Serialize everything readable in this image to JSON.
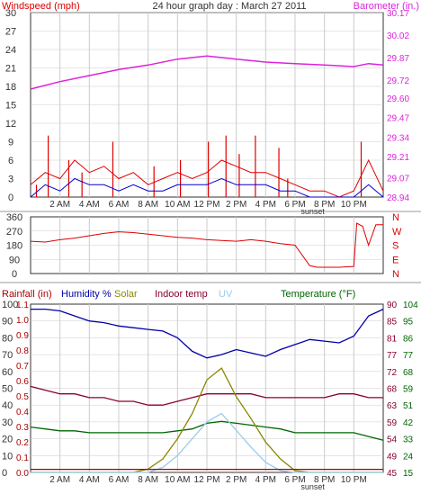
{
  "header": {
    "wind_label": "Windspeed (mph)",
    "title": "24 hour graph day : March 27 2011",
    "baro_label": "Barometer (in.)"
  },
  "colors": {
    "wind": "#dd0000",
    "gust_bars": "#dd0000",
    "avg_wind": "#0000cc",
    "barometer": "#dd22dd",
    "humidity": "#0000aa",
    "indoor": "#880033",
    "temperature": "#006600",
    "solar": "#888800",
    "uv": "#99ccee",
    "rain": "#aa0000",
    "grid": "#cccccc",
    "axis_text": "#333333"
  },
  "time_axis": {
    "labels": [
      "2 AM",
      "4 AM",
      "6 AM",
      "8 AM",
      "10 AM",
      "12 PM",
      "2 PM",
      "4 PM",
      "6 PM",
      "8 PM",
      "10 PM"
    ],
    "label_hours": [
      2,
      4,
      6,
      8,
      10,
      12,
      14,
      16,
      18,
      20,
      22
    ],
    "sunset_label": "sunset"
  },
  "wind_panel": {
    "left_ticks": [
      "30",
      "27",
      "24",
      "21",
      "18",
      "15",
      "12",
      "9",
      "6",
      "3",
      "0"
    ],
    "right_ticks": [
      "30.17",
      "30.02",
      "29.87",
      "29.72",
      "29.60",
      "29.47",
      "29.34",
      "29.21",
      "29.07",
      "28.94"
    ]
  },
  "dir_panel": {
    "left_ticks": [
      "360",
      "270",
      "180",
      "90",
      "0"
    ],
    "right_ticks": [
      "N",
      "W",
      "S",
      "E",
      "N"
    ]
  },
  "bottom_panel": {
    "rain_label": "Rainfall (in)",
    "humidity_label": "Humidity %",
    "solar_label": "Solar",
    "indoor_label": "Indoor temp",
    "uv_label": "UV",
    "temp_label": "Temperature (°F)",
    "left1_ticks": [
      "100",
      "90",
      "80",
      "70",
      "60",
      "50",
      "40",
      "30",
      "20",
      "10",
      "0"
    ],
    "left2_ticks": [
      "1.1",
      "1.0",
      "0.9",
      "0.8",
      "0.7",
      "0.6",
      "0.5",
      "0.4",
      "0.3",
      "0.2",
      "0.1",
      "0.0"
    ],
    "right1_ticks": [
      "90",
      "85",
      "81",
      "77",
      "72",
      "68",
      "63",
      "59",
      "54",
      "49",
      "45"
    ],
    "right2_ticks": [
      "104",
      "95",
      "86",
      "77",
      "68",
      "59",
      "51",
      "42",
      "33",
      "24",
      "15"
    ]
  },
  "chart_data": [
    {
      "type": "line",
      "title": "24 hour graph day : March 27 2011",
      "ylabel": "Windspeed (mph)",
      "ylabel_right": "Barometer (in.)",
      "ylim": [
        0,
        30
      ],
      "ylim_right": [
        28.94,
        30.17
      ],
      "x_hours": [
        0,
        1,
        2,
        3,
        4,
        5,
        6,
        7,
        8,
        9,
        10,
        11,
        12,
        13,
        14,
        15,
        16,
        17,
        18,
        19,
        20,
        21,
        22,
        23,
        24
      ],
      "series": [
        {
          "name": "Barometer (in.)",
          "axis": "right",
          "hours": [
            0,
            2,
            4,
            6,
            8,
            10,
            12,
            14,
            16,
            18,
            20,
            22,
            23,
            24
          ],
          "values": [
            29.66,
            29.71,
            29.75,
            29.79,
            29.82,
            29.86,
            29.88,
            29.86,
            29.84,
            29.83,
            29.82,
            29.81,
            29.83,
            29.82
          ]
        },
        {
          "axis": "left",
          "values": [
            2,
            4,
            3,
            6,
            4,
            5,
            3,
            4,
            2,
            3,
            4,
            3,
            4,
            6,
            5,
            4,
            4,
            3,
            2,
            1,
            1,
            0,
            1,
            6,
            1
          ]
        },
        {
          "axis": "left",
          "values": [
            0,
            2,
            1,
            3,
            2,
            2,
            1,
            2,
            1,
            1,
            2,
            2,
            2,
            3,
            2,
            2,
            2,
            1,
            1,
            0,
            0,
            0,
            0,
            2,
            0
          ]
        }
      ],
      "gust_bars": [
        {
          "hour": 0.4,
          "value": 2
        },
        {
          "hour": 1.2,
          "value": 10
        },
        {
          "hour": 2.6,
          "value": 6
        },
        {
          "hour": 3.5,
          "value": 4
        },
        {
          "hour": 5.6,
          "value": 9
        },
        {
          "hour": 8.4,
          "value": 5
        },
        {
          "hour": 10.2,
          "value": 6
        },
        {
          "hour": 12.1,
          "value": 9
        },
        {
          "hour": 13.3,
          "value": 10
        },
        {
          "hour": 14.2,
          "value": 7
        },
        {
          "hour": 15.3,
          "value": 10
        },
        {
          "hour": 16.9,
          "value": 8
        },
        {
          "hour": 17.5,
          "value": 3
        },
        {
          "hour": 22.5,
          "value": 9
        }
      ]
    },
    {
      "type": "line",
      "ylim": [
        0,
        360
      ],
      "hours": [
        0,
        1,
        2,
        3,
        4,
        5,
        6,
        7,
        8,
        9,
        10,
        11,
        12,
        13,
        14,
        15,
        16,
        17,
        18,
        19,
        19.5,
        20,
        21,
        22,
        22.2,
        22.6,
        23,
        23.5,
        24
      ],
      "values": [
        205,
        200,
        215,
        225,
        240,
        255,
        265,
        260,
        250,
        240,
        230,
        225,
        215,
        210,
        205,
        215,
        205,
        190,
        180,
        50,
        40,
        40,
        40,
        45,
        320,
        300,
        180,
        310,
        310
      ]
    },
    {
      "type": "line",
      "x_hours": [
        0,
        1,
        2,
        3,
        4,
        5,
        6,
        7,
        8,
        9,
        10,
        11,
        12,
        13,
        14,
        15,
        16,
        17,
        18,
        19,
        20,
        21,
        22,
        23,
        24
      ],
      "series": [
        {
          "name": "Humidity %",
          "axis": "humidity",
          "ylim": [
            0,
            100
          ],
          "values": [
            97,
            97,
            96,
            93,
            90,
            89,
            87,
            86,
            85,
            84,
            80,
            72,
            68,
            70,
            73,
            71,
            69,
            73,
            76,
            79,
            78,
            77,
            81,
            93,
            97
          ]
        },
        {
          "name": "Indoor temp",
          "axis": "indoor",
          "ylim": [
            45,
            90
          ],
          "values": [
            68,
            67,
            66,
            66,
            65,
            65,
            64,
            64,
            63,
            63,
            64,
            65,
            66,
            66,
            66,
            66,
            65,
            65,
            65,
            65,
            65,
            66,
            66,
            65,
            65
          ]
        },
        {
          "name": "Temperature (°F)",
          "axis": "temperature",
          "ylim": [
            15,
            104
          ],
          "values": [
            39,
            38,
            37,
            37,
            36,
            36,
            36,
            36,
            36,
            36,
            37,
            38,
            41,
            42,
            41,
            40,
            39,
            38,
            36,
            36,
            36,
            36,
            36,
            34,
            32
          ]
        },
        {
          "name": "Solar",
          "axis": "humidity",
          "ylim": [
            0,
            100
          ],
          "values": [
            0,
            0,
            0,
            0,
            0,
            0,
            0,
            0,
            2,
            8,
            20,
            35,
            55,
            62,
            45,
            32,
            18,
            8,
            1,
            0,
            0,
            0,
            0,
            0,
            0
          ]
        },
        {
          "name": "UV",
          "axis": "humidity",
          "ylim": [
            0,
            100
          ],
          "values": [
            0,
            0,
            0,
            0,
            0,
            0,
            0,
            0,
            0,
            3,
            10,
            20,
            30,
            35,
            25,
            15,
            6,
            1,
            0,
            0,
            0,
            0,
            0,
            0,
            0
          ]
        },
        {
          "name": "Rainfall (in)",
          "axis": "rain",
          "ylim": [
            0,
            1.1
          ],
          "values": [
            0.02,
            0.02,
            0.02,
            0.02,
            0.02,
            0.02,
            0.02,
            0.02,
            0.02,
            0.02,
            0.02,
            0.02,
            0.02,
            0.02,
            0.02,
            0.02,
            0.02,
            0.02,
            0.02,
            0.02,
            0.02,
            0.02,
            0.02,
            0.02,
            0.02
          ]
        }
      ]
    }
  ]
}
